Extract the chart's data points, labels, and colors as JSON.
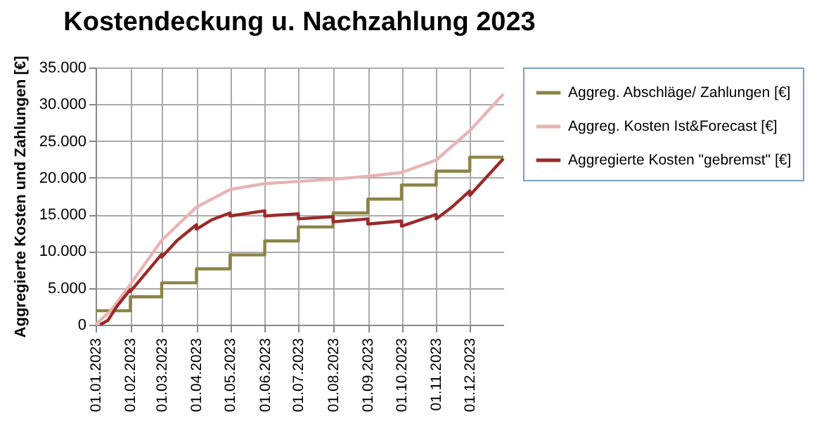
{
  "chart_data": {
    "type": "line",
    "title": "Kostendeckung u. Nachzahlung 2023",
    "ylabel": "Aggregierte Kosten und Zahlungen [€]",
    "xlim": [
      "2023-01-01",
      "2023-12-31"
    ],
    "xticks": [
      {
        "value": "2023-01-01",
        "label": "01.01.2023"
      },
      {
        "value": "2023-02-01",
        "label": "01.02.2023"
      },
      {
        "value": "2023-03-01",
        "label": "01.03.2023"
      },
      {
        "value": "2023-04-01",
        "label": "01.04.2023"
      },
      {
        "value": "2023-05-01",
        "label": "01.05.2023"
      },
      {
        "value": "2023-06-01",
        "label": "01.06.2023"
      },
      {
        "value": "2023-07-01",
        "label": "01.07.2023"
      },
      {
        "value": "2023-08-01",
        "label": "01.08.2023"
      },
      {
        "value": "2023-09-01",
        "label": "01.09.2023"
      },
      {
        "value": "2023-10-01",
        "label": "01.10.2023"
      },
      {
        "value": "2023-11-01",
        "label": "01.11.2023"
      },
      {
        "value": "2023-12-01",
        "label": "01.12.2023"
      }
    ],
    "ylim": [
      0,
      35000
    ],
    "yticks": [
      {
        "value": 0,
        "label": "0"
      },
      {
        "value": 5000,
        "label": "5.000"
      },
      {
        "value": 10000,
        "label": "10.000"
      },
      {
        "value": 15000,
        "label": "15.000"
      },
      {
        "value": 20000,
        "label": "20.000"
      },
      {
        "value": 25000,
        "label": "25.000"
      },
      {
        "value": 30000,
        "label": "30.000"
      },
      {
        "value": 35000,
        "label": "35.000"
      }
    ],
    "grid": true,
    "legend": "right",
    "line_style": "solid",
    "series": [
      {
        "name": "Aggreg. Abschläge/ Zahlungen [€]",
        "type": "step",
        "color": "#8c8446",
        "x": [
          "2023-01-01",
          "2023-02-01",
          "2023-03-01",
          "2023-04-01",
          "2023-05-01",
          "2023-06-01",
          "2023-07-01",
          "2023-08-01",
          "2023-09-01",
          "2023-10-01",
          "2023-11-01",
          "2023-12-01",
          "2023-12-31"
        ],
        "values": [
          1900,
          3800,
          5700,
          7600,
          9500,
          11400,
          13300,
          15200,
          17100,
          19000,
          20900,
          22800,
          22800
        ]
      },
      {
        "name": "Aggreg. Kosten Ist&Forecast [€]",
        "type": "line",
        "color": "#e8b4b4",
        "x": [
          "2023-01-01",
          "2023-01-15",
          "2023-02-01",
          "2023-03-01",
          "2023-04-01",
          "2023-05-01",
          "2023-06-01",
          "2023-07-01",
          "2023-08-01",
          "2023-09-01",
          "2023-10-01",
          "2023-11-01",
          "2023-12-01",
          "2023-12-31"
        ],
        "values": [
          0,
          2000,
          5500,
          11500,
          16000,
          18400,
          19200,
          19500,
          19800,
          20200,
          20700,
          22400,
          26400,
          31400
        ]
      },
      {
        "name": "Aggregierte Kosten \"gebremst\" [€]",
        "type": "line",
        "color": "#9b2a2a",
        "x": [
          "2023-01-05",
          "2023-01-12",
          "2023-01-20",
          "2023-02-01",
          "2023-02-01",
          "2023-03-01",
          "2023-03-01",
          "2023-03-15",
          "2023-04-01",
          "2023-04-01",
          "2023-04-15",
          "2023-05-01",
          "2023-05-01",
          "2023-06-01",
          "2023-06-01",
          "2023-07-01",
          "2023-07-01",
          "2023-08-01",
          "2023-08-01",
          "2023-09-01",
          "2023-09-01",
          "2023-10-01",
          "2023-10-01",
          "2023-11-01",
          "2023-11-01",
          "2023-11-15",
          "2023-12-01",
          "2023-12-01",
          "2023-12-31"
        ],
        "values": [
          0,
          600,
          2500,
          4800,
          4500,
          9600,
          9200,
          11500,
          13600,
          13000,
          14300,
          15200,
          14800,
          15500,
          14800,
          15100,
          14400,
          14700,
          14000,
          14400,
          13700,
          14100,
          13400,
          15000,
          14400,
          16000,
          18200,
          17600,
          22600
        ]
      }
    ]
  }
}
